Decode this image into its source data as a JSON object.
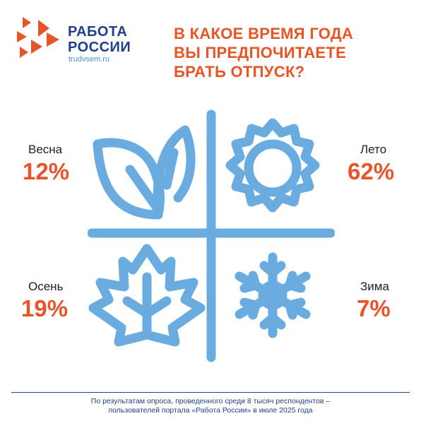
{
  "logo": {
    "title_line1": "РАБОТА",
    "title_line2": "РОССИИ",
    "url": "trudvsem.ru",
    "colors": {
      "arrows": "#e8532a",
      "text": "#1f3e8c",
      "url": "#4f8fd1"
    }
  },
  "headline": {
    "line1": "В КАКОЕ ВРЕМЯ ГОДА",
    "line2": "ВЫ ПРЕДПОЧИТАЕТЕ",
    "line3": "БРАТЬ ОТПУСК?"
  },
  "seasons": [
    {
      "name": "Весна",
      "percent": "12%",
      "icon": "leaves-icon"
    },
    {
      "name": "Лето",
      "percent": "62%",
      "icon": "sun-icon"
    },
    {
      "name": "Осень",
      "percent": "19%",
      "icon": "maple-leaf-icon"
    },
    {
      "name": "Зима",
      "percent": "7%",
      "icon": "snowflake-icon"
    }
  ],
  "colors": {
    "icons": "#6aabe0",
    "percent": "#e8532a",
    "headline": "#e85424"
  },
  "footer": {
    "line1": "По результатам опроса, проведенного среди 8 тысяч респондентов –",
    "line2": "пользователей портала «Работа России» в июле 2025 года"
  }
}
